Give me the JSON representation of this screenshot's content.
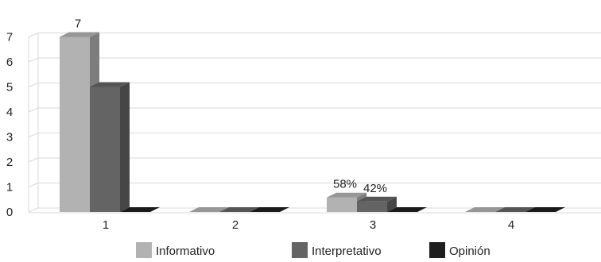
{
  "chart_data": {
    "type": "bar",
    "style": "3d-clustered-column",
    "categories": [
      "1",
      "2",
      "3",
      "4"
    ],
    "series": [
      {
        "name": "Informativo",
        "values": [
          7,
          0,
          0.58,
          0
        ],
        "color": "#b2b2b2"
      },
      {
        "name": "Interpretativo",
        "values": [
          5,
          0,
          0.42,
          0
        ],
        "color": "#646464"
      },
      {
        "name": "Opinión",
        "values": [
          0,
          0,
          0,
          0
        ],
        "color": "#1f1f1f"
      }
    ],
    "data_labels": [
      {
        "series": 0,
        "category": 0,
        "text": "7"
      },
      {
        "series": 0,
        "category": 2,
        "text": "58%"
      },
      {
        "series": 1,
        "category": 2,
        "text": "42%"
      }
    ],
    "ylim": [
      0,
      7
    ],
    "yticks": [
      "0",
      "1",
      "2",
      "3",
      "4",
      "5",
      "6",
      "7"
    ],
    "grid": true,
    "legend_position": "bottom",
    "title": "",
    "xlabel": "",
    "ylabel": ""
  }
}
